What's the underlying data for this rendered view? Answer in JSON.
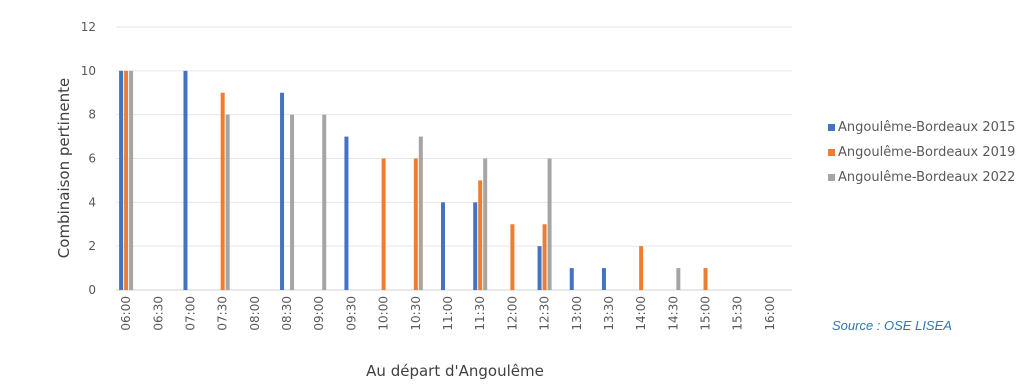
{
  "colors": {
    "series": [
      "#4472c4",
      "#ed7d31",
      "#a5a5a5"
    ],
    "grid": "#e6e6e6",
    "source": "#2e75b6"
  },
  "source_note": "Source : OSE LISEA",
  "chart_data": {
    "type": "bar",
    "xlabel": "Au départ d'Angoulême",
    "ylabel": "Combinaison pertinente",
    "ylim": [
      0,
      12
    ],
    "yticks": [
      0,
      2,
      4,
      6,
      8,
      10,
      12
    ],
    "grid": true,
    "legend_position": "right",
    "categories": [
      "06:00",
      "06:30",
      "07:00",
      "07:30",
      "08:00",
      "08:30",
      "09:00",
      "09:30",
      "10:00",
      "10:30",
      "11:00",
      "11:30",
      "12:00",
      "12:30",
      "13:00",
      "13:30",
      "14:00",
      "14:30",
      "15:00",
      "15:30",
      "16:00"
    ],
    "series": [
      {
        "name": "Angoulême-Bordeaux 2015",
        "values": [
          10,
          0,
          10,
          0,
          0,
          9,
          0,
          7,
          0,
          0,
          4,
          4,
          0,
          2,
          1,
          1,
          0,
          0,
          0,
          0,
          0
        ]
      },
      {
        "name": "Angoulême-Bordeaux 2019",
        "values": [
          10,
          0,
          0,
          9,
          0,
          0,
          0,
          0,
          6,
          6,
          0,
          5,
          3,
          3,
          0,
          0,
          2,
          0,
          1,
          0,
          0
        ]
      },
      {
        "name": "Angoulême-Bordeaux 2022",
        "values": [
          10,
          0,
          0,
          8,
          0,
          8,
          8,
          0,
          0,
          7,
          0,
          6,
          0,
          6,
          0,
          0,
          0,
          1,
          0,
          0,
          0
        ]
      }
    ]
  }
}
